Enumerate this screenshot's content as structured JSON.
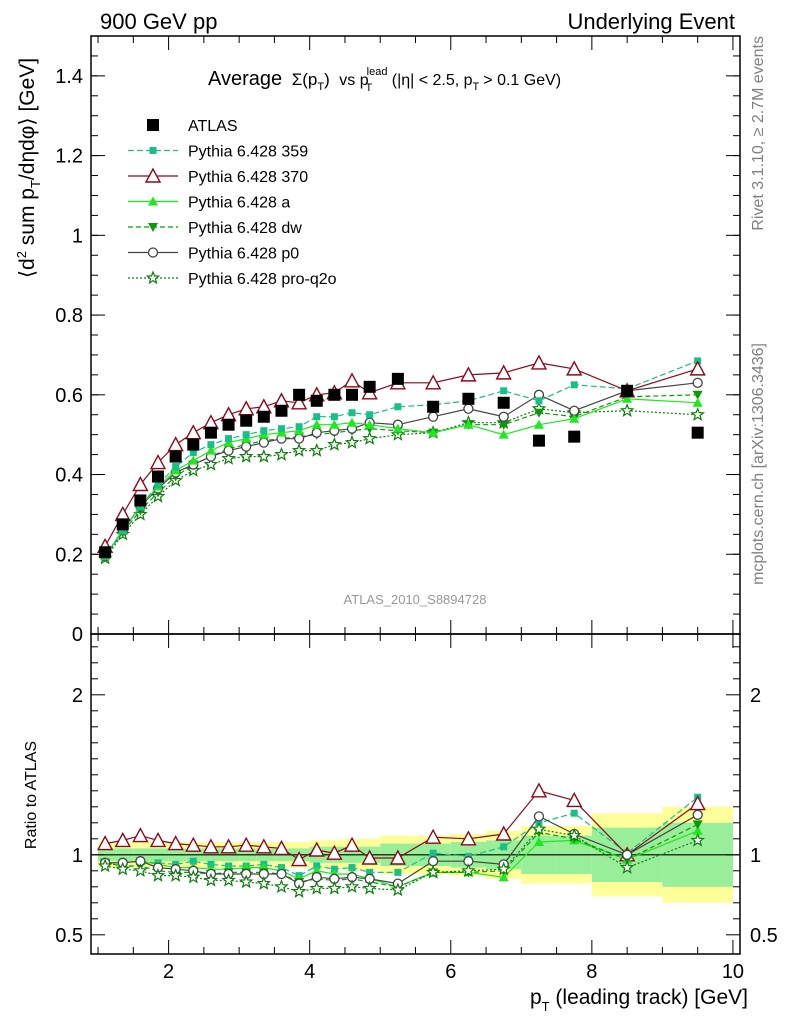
{
  "header": {
    "left": "900 GeV pp",
    "right": "Underlying Event"
  },
  "side": {
    "top": "Rivet 3.1.10, ≥ 2.7M events",
    "bottom": "mcplots.cern.ch [arXiv:1306.3436]"
  },
  "main": {
    "title_prefix": "Average",
    "title_sigma": "Σ(p",
    "title_sigma_sub": "T",
    "title_close": ")",
    "title_vs": "vs p",
    "title_lead_sup": "lead",
    "title_lead_sub": "T",
    "title_cut": "(|η| < 2.5, p",
    "title_cut_sub": "T",
    "title_cut_end": "> 0.1 GeV)",
    "ylabel_a": "⟨d",
    "ylabel_sup": "2",
    "ylabel_b": " sum p",
    "ylabel_sub": "T",
    "ylabel_c": "/dηdφ⟩ [GeV]",
    "analysis_tag": "ATLAS_2010_S8894728"
  },
  "ratio": {
    "ylabel": "Ratio to ATLAS"
  },
  "xaxis": {
    "label_a": "p",
    "label_sub": "T",
    "label_b": " (leading track) [GeV]"
  },
  "chart_data": [
    {
      "type": "scatter",
      "panel": "main",
      "xlim": [
        0.9,
        10.1
      ],
      "ylim": [
        0,
        1.5
      ],
      "xticks": [
        2,
        4,
        6,
        8,
        10
      ],
      "yticks": [
        0,
        0.2,
        0.4,
        0.6,
        0.8,
        1,
        1.2,
        1.4
      ],
      "ytick_labels": [
        "0",
        "0.2",
        "0.4",
        "0.6",
        "0.8",
        "1",
        "1.2",
        "1.4"
      ],
      "xtick_labels": [
        "2",
        "4",
        "6",
        "8",
        "10"
      ],
      "x": [
        1.1,
        1.35,
        1.6,
        1.85,
        2.1,
        2.35,
        2.6,
        2.85,
        3.1,
        3.35,
        3.6,
        3.85,
        4.1,
        4.35,
        4.6,
        4.85,
        5.25,
        5.75,
        6.25,
        6.75,
        7.25,
        7.75,
        8.5,
        9.5
      ],
      "series": [
        {
          "name": "ATLAS",
          "marker": "square",
          "color": "#000000",
          "dash": "none",
          "values": [
            0.205,
            0.275,
            0.335,
            0.395,
            0.445,
            0.475,
            0.505,
            0.525,
            0.535,
            0.545,
            0.56,
            0.6,
            0.585,
            0.6,
            0.6,
            0.62,
            0.64,
            0.57,
            0.59,
            0.58,
            0.485,
            0.495,
            0.61,
            0.505
          ]
        },
        {
          "name": "Pythia 6.428 359",
          "marker": "small-square",
          "color": "#19bf89",
          "dash": "6,3",
          "values": [
            0.195,
            0.26,
            0.32,
            0.375,
            0.42,
            0.455,
            0.475,
            0.49,
            0.5,
            0.51,
            0.515,
            0.52,
            0.545,
            0.545,
            0.555,
            0.55,
            0.57,
            0.575,
            0.585,
            0.61,
            0.585,
            0.625,
            0.615,
            0.685
          ]
        },
        {
          "name": "Pythia 6.428 370",
          "marker": "open-triangle",
          "color": "#8b0a1a",
          "dash": "none",
          "values": [
            0.22,
            0.3,
            0.375,
            0.43,
            0.475,
            0.505,
            0.53,
            0.55,
            0.565,
            0.57,
            0.585,
            0.58,
            0.6,
            0.605,
            0.635,
            0.605,
            0.63,
            0.63,
            0.65,
            0.655,
            0.68,
            0.665,
            0.61,
            0.665
          ]
        },
        {
          "name": "Pythia 6.428 a",
          "marker": "triangle",
          "color": "#1ee81e",
          "dash": "none",
          "values": [
            0.195,
            0.26,
            0.32,
            0.37,
            0.41,
            0.435,
            0.46,
            0.48,
            0.49,
            0.5,
            0.505,
            0.51,
            0.525,
            0.525,
            0.53,
            0.525,
            0.515,
            0.505,
            0.525,
            0.5,
            0.525,
            0.54,
            0.59,
            0.58
          ]
        },
        {
          "name": "Pythia 6.428 dw",
          "marker": "triangle-down",
          "color": "#0c9a0c",
          "dash": "5,3",
          "values": [
            0.195,
            0.255,
            0.31,
            0.355,
            0.395,
            0.425,
            0.445,
            0.465,
            0.475,
            0.485,
            0.49,
            0.495,
            0.5,
            0.505,
            0.51,
            0.515,
            0.51,
            0.505,
            0.525,
            0.525,
            0.555,
            0.545,
            0.595,
            0.6
          ]
        },
        {
          "name": "Pythia 6.428 p0",
          "marker": "open-circle",
          "color": "#444444",
          "dash": "none",
          "values": [
            0.195,
            0.26,
            0.32,
            0.365,
            0.405,
            0.425,
            0.445,
            0.46,
            0.47,
            0.48,
            0.49,
            0.49,
            0.505,
            0.51,
            0.515,
            0.53,
            0.525,
            0.545,
            0.565,
            0.545,
            0.6,
            0.56,
            0.61,
            0.63
          ]
        },
        {
          "name": "Pythia 6.428 pro-q2o",
          "marker": "star",
          "color": "#0e7d0e",
          "dash": "2,2",
          "values": [
            0.19,
            0.25,
            0.3,
            0.345,
            0.385,
            0.41,
            0.425,
            0.44,
            0.445,
            0.445,
            0.45,
            0.46,
            0.46,
            0.475,
            0.48,
            0.49,
            0.5,
            0.505,
            0.53,
            0.53,
            0.565,
            0.555,
            0.56,
            0.55
          ]
        }
      ]
    },
    {
      "type": "line",
      "panel": "ratio",
      "xlim": [
        0.9,
        10.1
      ],
      "ylim": [
        0.38,
        2.38
      ],
      "yticks": [
        0.5,
        1,
        2
      ],
      "ytick_labels": [
        "0.5",
        "1",
        "2"
      ],
      "x": [
        1.1,
        1.35,
        1.6,
        1.85,
        2.1,
        2.35,
        2.6,
        2.85,
        3.1,
        3.35,
        3.6,
        3.85,
        4.1,
        4.35,
        4.6,
        4.85,
        5.25,
        5.75,
        6.25,
        6.75,
        7.25,
        7.75,
        8.5,
        9.5
      ],
      "bands": {
        "yellow_halfwidth": [
          0.08,
          0.08,
          0.08,
          0.08,
          0.08,
          0.08,
          0.08,
          0.08,
          0.08,
          0.08,
          0.08,
          0.08,
          0.09,
          0.09,
          0.1,
          0.1,
          0.12,
          0.12,
          0.13,
          0.15,
          0.18,
          0.18,
          0.26,
          0.3
        ],
        "green_halfwidth": [
          0.04,
          0.04,
          0.04,
          0.04,
          0.04,
          0.04,
          0.04,
          0.04,
          0.04,
          0.04,
          0.04,
          0.04,
          0.05,
          0.05,
          0.05,
          0.05,
          0.07,
          0.07,
          0.08,
          0.09,
          0.12,
          0.12,
          0.17,
          0.2
        ],
        "bin_edges": [
          1.0,
          1.25,
          1.5,
          1.75,
          2.0,
          2.25,
          2.5,
          2.75,
          3.0,
          3.25,
          3.5,
          3.75,
          4.0,
          4.25,
          4.5,
          4.75,
          5.0,
          5.5,
          6.0,
          6.5,
          7.0,
          7.5,
          8.0,
          9.0,
          10.0
        ]
      },
      "series": [
        {
          "name": "Pythia 6.428 359",
          "values": [
            0.95,
            0.95,
            0.96,
            0.95,
            0.94,
            0.96,
            0.94,
            0.93,
            0.93,
            0.94,
            0.92,
            0.87,
            0.93,
            0.91,
            0.92,
            0.89,
            0.89,
            1.01,
            0.99,
            1.05,
            1.2,
            1.26,
            1.01,
            1.36
          ]
        },
        {
          "name": "Pythia 6.428 370",
          "values": [
            1.07,
            1.09,
            1.12,
            1.09,
            1.07,
            1.06,
            1.05,
            1.05,
            1.06,
            1.05,
            1.04,
            0.97,
            1.03,
            1.01,
            1.06,
            0.98,
            0.98,
            1.11,
            1.1,
            1.13,
            1.4,
            1.34,
            1.0,
            1.32
          ]
        },
        {
          "name": "Pythia 6.428 a",
          "values": [
            0.95,
            0.95,
            0.96,
            0.94,
            0.92,
            0.92,
            0.91,
            0.91,
            0.92,
            0.92,
            0.9,
            0.85,
            0.9,
            0.88,
            0.88,
            0.85,
            0.8,
            0.89,
            0.89,
            0.86,
            1.08,
            1.09,
            0.97,
            1.15
          ]
        },
        {
          "name": "Pythia 6.428 dw",
          "values": [
            0.95,
            0.93,
            0.93,
            0.9,
            0.89,
            0.89,
            0.88,
            0.89,
            0.89,
            0.89,
            0.88,
            0.83,
            0.85,
            0.84,
            0.85,
            0.83,
            0.8,
            0.89,
            0.89,
            0.9,
            1.14,
            1.1,
            0.97,
            1.19
          ]
        },
        {
          "name": "Pythia 6.428 p0",
          "values": [
            0.95,
            0.95,
            0.96,
            0.92,
            0.91,
            0.9,
            0.88,
            0.88,
            0.88,
            0.88,
            0.88,
            0.82,
            0.86,
            0.85,
            0.86,
            0.85,
            0.82,
            0.96,
            0.96,
            0.94,
            1.24,
            1.13,
            1.0,
            1.25
          ]
        },
        {
          "name": "Pythia 6.428 pro-q2o",
          "values": [
            0.93,
            0.91,
            0.9,
            0.87,
            0.87,
            0.86,
            0.84,
            0.84,
            0.83,
            0.82,
            0.8,
            0.77,
            0.79,
            0.79,
            0.8,
            0.79,
            0.78,
            0.89,
            0.9,
            0.91,
            1.16,
            1.12,
            0.92,
            1.09
          ]
        }
      ]
    }
  ]
}
